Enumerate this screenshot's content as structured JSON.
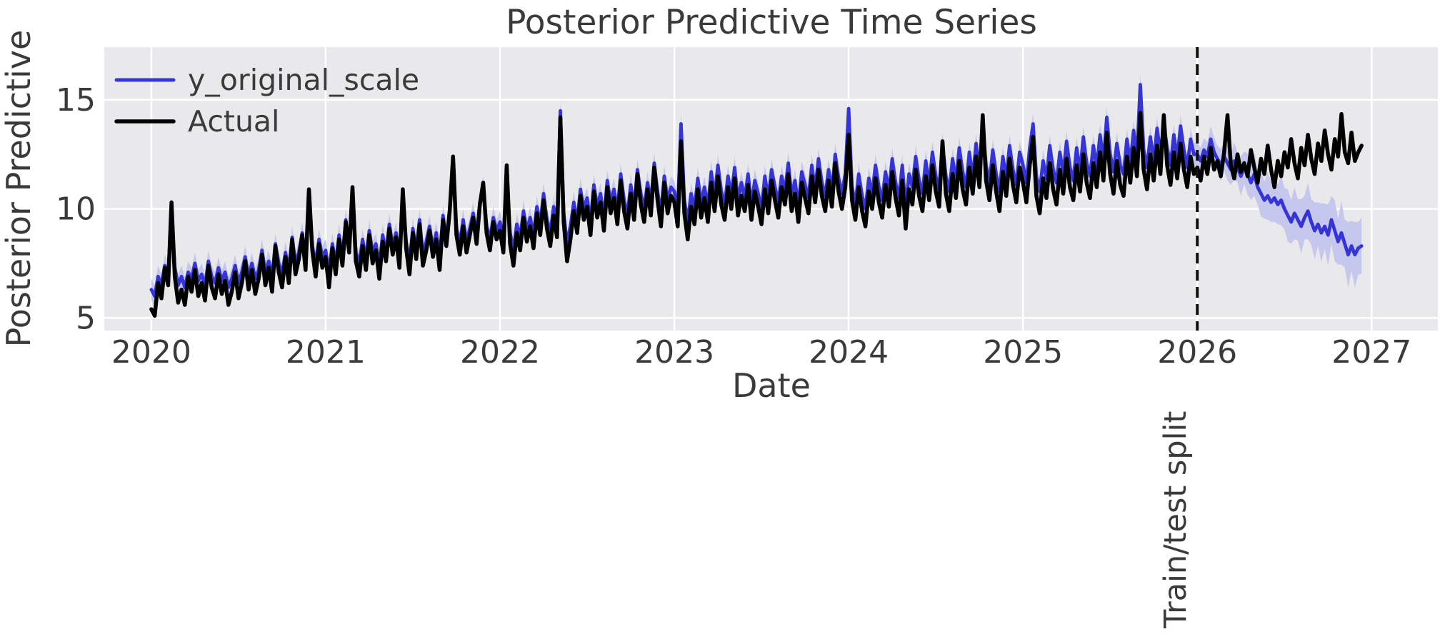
{
  "chart_data": {
    "type": "line",
    "title": "Posterior Predictive Time Series",
    "xlabel": "Date",
    "ylabel": "Posterior Predictive",
    "legend": [
      {
        "label": "y_original_scale",
        "color": "#3534d8"
      },
      {
        "label": "Actual",
        "color": "#000000"
      }
    ],
    "x_start": 2020.0,
    "x_step": 0.019231,
    "xlim": [
      2019.73,
      2027.38
    ],
    "ylim": [
      4.42,
      17.42
    ],
    "x_ticks": [
      2020,
      2021,
      2022,
      2023,
      2024,
      2025,
      2026,
      2027
    ],
    "y_ticks": [
      5,
      10,
      15
    ],
    "grid": true,
    "legend_position": "upper-left",
    "split": {
      "x": 2026.0,
      "label": "Train/test split"
    },
    "colors": {
      "axes_background": "#e9e9eb",
      "gridline": "#ffffff",
      "predicted_line": "#3534d8",
      "band_fill": "#c6c7ed",
      "actual_line": "#000000",
      "split_line": "#111111",
      "text": "#3a3a3a"
    },
    "series": {
      "predicted": {
        "name": "y_original_scale",
        "values": [
          6.3,
          6.0,
          6.9,
          6.5,
          7.4,
          7.0,
          9.8,
          7.3,
          6.5,
          6.9,
          6.4,
          7.1,
          6.8,
          7.5,
          6.7,
          7.0,
          6.5,
          7.6,
          6.9,
          6.6,
          7.3,
          6.7,
          7.1,
          6.4,
          6.8,
          7.4,
          6.6,
          7.1,
          7.8,
          6.9,
          7.5,
          6.8,
          7.2,
          8.1,
          7.1,
          7.6,
          6.9,
          8.4,
          7.5,
          7.0,
          8.0,
          7.2,
          8.7,
          7.5,
          8.0,
          8.9,
          7.7,
          10.5,
          8.3,
          7.5,
          8.6,
          7.8,
          8.1,
          7.1,
          8.4,
          7.5,
          8.8,
          7.8,
          9.5,
          8.3,
          10.6,
          8.0,
          7.5,
          8.6,
          7.7,
          9.0,
          8.0,
          8.4,
          7.4,
          8.8,
          8.0,
          9.3,
          8.3,
          8.9,
          7.8,
          10.5,
          8.5,
          7.6,
          9.1,
          8.1,
          9.5,
          7.9,
          8.5,
          9.2,
          8.2,
          8.9,
          7.8,
          9.7,
          8.6,
          10.0,
          11.9,
          9.1,
          8.4,
          9.5,
          8.5,
          9.1,
          9.8,
          8.8,
          10.3,
          11.0,
          9.2,
          8.6,
          9.6,
          9.0,
          9.4,
          8.6,
          11.5,
          8.9,
          8.1,
          9.3,
          8.7,
          9.9,
          9.0,
          9.6,
          8.8,
          10.1,
          9.3,
          10.7,
          9.5,
          8.9,
          10.1,
          9.2,
          14.5,
          9.8,
          8.4,
          9.2,
          10.3,
          9.4,
          10.9,
          10.0,
          10.5,
          9.4,
          11.1,
          10.1,
          10.7,
          9.6,
          11.3,
          10.3,
          10.9,
          9.9,
          11.6,
          10.4,
          9.7,
          11.1,
          10.1,
          11.8,
          10.7,
          10.0,
          11.2,
          10.3,
          12.1,
          10.8,
          9.8,
          11.5,
          10.4,
          11.0,
          10.8,
          9.9,
          13.9,
          10.4,
          9.4,
          10.7,
          10.0,
          11.4,
          10.3,
          11.0,
          10.1,
          11.7,
          10.6,
          12.0,
          10.8,
          10.2,
          11.5,
          10.6,
          11.9,
          10.4,
          11.2,
          10.5,
          11.6,
          10.2,
          11.3,
          10.7,
          10.0,
          11.5,
          10.5,
          11.8,
          11.0,
          10.3,
          11.5,
          10.8,
          12.1,
          10.6,
          11.3,
          10.1,
          11.7,
          11.1,
          10.5,
          12.0,
          10.9,
          12.3,
          11.2,
          10.6,
          11.8,
          10.8,
          12.5,
          11.4,
          10.7,
          11.6,
          14.6,
          11.0,
          10.2,
          11.6,
          10.6,
          10.0,
          11.4,
          10.7,
          12.0,
          11.0,
          10.4,
          11.7,
          10.8,
          12.3,
          11.2,
          10.5,
          12.0,
          10.0,
          11.6,
          11.0,
          12.4,
          11.3,
          10.7,
          12.2,
          11.1,
          12.6,
          11.5,
          10.9,
          13.0,
          11.5,
          10.8,
          12.3,
          11.3,
          12.8,
          11.7,
          11.0,
          12.6,
          11.4,
          13.0,
          11.8,
          13.8,
          12.0,
          11.2,
          12.7,
          11.6,
          10.8,
          12.4,
          11.4,
          12.9,
          11.8,
          11.1,
          12.6,
          12.0,
          11.2,
          12.8,
          13.9,
          11.5,
          10.8,
          12.2,
          11.4,
          12.9,
          11.8,
          11.2,
          12.6,
          11.6,
          13.1,
          11.9,
          11.3,
          12.8,
          11.7,
          13.3,
          12.1,
          11.5,
          12.9,
          11.9,
          13.4,
          12.2,
          14.2,
          12.5,
          11.7,
          13.0,
          12.0,
          11.6,
          13.2,
          12.1,
          13.6,
          12.4,
          15.7,
          12.7,
          11.9,
          13.3,
          12.2,
          13.7,
          12.5,
          13.9,
          12.8,
          12.0,
          13.4,
          12.3,
          13.8,
          12.7,
          11.9,
          13.2,
          12.5,
          12.5,
          12.2,
          12.7,
          12.4,
          13.2,
          12.6,
          12.3,
          12.0,
          12.4,
          12.1,
          11.8,
          12.2,
          11.9,
          11.5,
          11.9,
          11.6,
          11.2,
          11.6,
          11.0,
          10.7,
          10.4,
          10.6,
          10.3,
          10.5,
          10.2,
          10.4,
          10.0,
          9.7,
          9.4,
          9.8,
          9.5,
          9.2,
          9.6,
          9.9,
          9.4,
          9.0,
          9.3,
          8.9,
          9.2,
          8.8,
          9.5,
          9.0,
          8.5,
          8.9,
          8.4,
          7.9,
          8.3,
          7.9,
          8.2,
          8.3
        ]
      },
      "actual": {
        "name": "Actual",
        "values": [
          5.4,
          5.1,
          6.6,
          5.9,
          7.3,
          6.5,
          10.3,
          6.9,
          5.7,
          6.3,
          5.6,
          6.9,
          6.2,
          7.2,
          6.0,
          6.6,
          5.8,
          7.4,
          6.4,
          5.9,
          7.0,
          6.1,
          6.7,
          5.6,
          6.2,
          7.1,
          5.9,
          6.6,
          7.6,
          6.3,
          7.2,
          6.1,
          6.8,
          7.9,
          6.5,
          7.3,
          6.2,
          8.3,
          7.1,
          6.4,
          7.8,
          6.6,
          8.6,
          7.0,
          7.7,
          8.8,
          7.2,
          10.9,
          8.1,
          6.9,
          8.4,
          7.3,
          7.8,
          6.4,
          8.2,
          7.0,
          8.6,
          7.4,
          9.4,
          8.0,
          11.0,
          7.6,
          6.9,
          8.3,
          7.2,
          8.8,
          7.5,
          8.1,
          6.8,
          8.5,
          7.6,
          9.1,
          7.9,
          8.7,
          7.3,
          10.9,
          8.2,
          7.0,
          8.9,
          7.7,
          9.3,
          7.4,
          8.1,
          9.0,
          7.8,
          8.6,
          7.2,
          9.5,
          8.3,
          9.9,
          12.4,
          8.8,
          7.9,
          9.2,
          8.0,
          8.8,
          9.6,
          8.4,
          10.2,
          11.2,
          8.9,
          8.1,
          9.4,
          8.6,
          9.0,
          8.0,
          12.0,
          8.4,
          7.4,
          8.9,
          8.1,
          9.6,
          8.5,
          9.2,
          8.2,
          9.8,
          8.8,
          10.4,
          9.1,
          8.3,
          9.7,
          8.7,
          14.2,
          9.4,
          7.6,
          8.6,
          9.9,
          8.9,
          10.6,
          9.5,
          10.1,
          8.8,
          10.8,
          9.6,
          10.3,
          9.0,
          11.0,
          9.8,
          10.5,
          9.3,
          11.3,
          9.9,
          9.1,
          10.7,
          9.5,
          11.6,
          10.2,
          9.4,
          10.9,
          9.7,
          11.9,
          10.4,
          9.2,
          11.2,
          9.8,
          10.6,
          10.3,
          9.2,
          13.1,
          9.8,
          8.6,
          10.1,
          9.3,
          10.9,
          9.6,
          10.5,
          9.4,
          11.2,
          9.9,
          11.5,
          10.2,
          9.5,
          11.0,
          10.0,
          11.4,
          9.7,
          10.6,
          9.9,
          11.1,
          9.5,
          10.8,
          10.1,
          9.3,
          10.9,
          9.8,
          11.3,
          10.4,
          9.6,
          11.0,
          10.2,
          11.6,
          9.9,
          10.7,
          9.4,
          11.2,
          10.5,
          9.8,
          11.5,
          10.3,
          11.8,
          10.6,
          9.9,
          11.3,
          10.1,
          12.1,
          10.8,
          10.0,
          11.0,
          13.4,
          10.4,
          9.5,
          11.0,
          9.9,
          9.2,
          10.8,
          10.0,
          11.4,
          10.3,
          9.6,
          11.1,
          10.1,
          11.7,
          10.5,
          9.7,
          11.3,
          9.1,
          10.9,
          10.2,
          11.8,
          10.6,
          9.9,
          11.5,
          10.4,
          12.0,
          10.8,
          10.1,
          13.1,
          10.7,
          9.9,
          11.6,
          10.5,
          12.2,
          10.9,
          10.2,
          11.9,
          10.7,
          12.4,
          11.0,
          14.3,
          11.3,
          10.4,
          12.0,
          10.8,
          9.9,
          11.7,
          10.6,
          12.3,
          11.1,
          10.3,
          11.9,
          11.2,
          10.3,
          12.0,
          13.3,
          10.6,
          9.8,
          11.4,
          10.5,
          12.1,
          10.9,
          10.2,
          11.8,
          10.7,
          12.3,
          11.0,
          10.4,
          12.0,
          10.8,
          12.5,
          11.2,
          10.5,
          12.1,
          11.0,
          12.6,
          11.3,
          13.5,
          11.6,
          10.7,
          12.2,
          11.1,
          10.6,
          12.4,
          11.2,
          12.8,
          11.5,
          14.4,
          11.8,
          10.9,
          12.5,
          11.3,
          12.9,
          11.6,
          14.3,
          12.0,
          11.1,
          12.6,
          11.4,
          13.0,
          11.8,
          11.0,
          12.4,
          11.6,
          11.9,
          11.3,
          12.4,
          11.6,
          12.8,
          11.8,
          12.2,
          11.5,
          12.6,
          14.3,
          12.0,
          11.4,
          12.5,
          11.7,
          12.1,
          11.5,
          12.7,
          11.9,
          11.2,
          12.3,
          11.6,
          12.9,
          11.8,
          11.0,
          12.2,
          11.5,
          12.6,
          11.9,
          13.2,
          12.1,
          11.4,
          12.8,
          12.0,
          13.4,
          12.3,
          11.6,
          13.0,
          12.2,
          13.6,
          12.5,
          11.8,
          13.2,
          12.4,
          14.35,
          12.6,
          12.1,
          13.5,
          12.2,
          12.6,
          12.9
        ]
      },
      "band": {
        "around": "predicted",
        "train_points": 312,
        "train_half_width": 0.5,
        "test_half_widths": [
          0.55,
          0.6,
          0.55,
          0.65,
          0.6,
          0.7,
          0.6,
          0.75,
          0.65,
          0.8,
          0.7,
          0.85,
          0.7,
          0.9,
          0.75,
          0.95,
          0.8,
          1.0,
          0.8,
          1.05,
          0.85,
          1.1,
          0.9,
          1.1,
          0.9,
          1.15,
          0.95,
          1.2,
          1.0,
          1.2,
          0.95,
          1.25,
          1.0,
          1.3,
          1.05,
          1.3,
          1.0,
          1.35,
          1.05,
          1.4,
          1.1,
          1.4,
          1.05,
          1.45,
          1.1,
          1.5,
          1.15,
          1.5,
          1.2,
          1.3
        ]
      }
    }
  }
}
